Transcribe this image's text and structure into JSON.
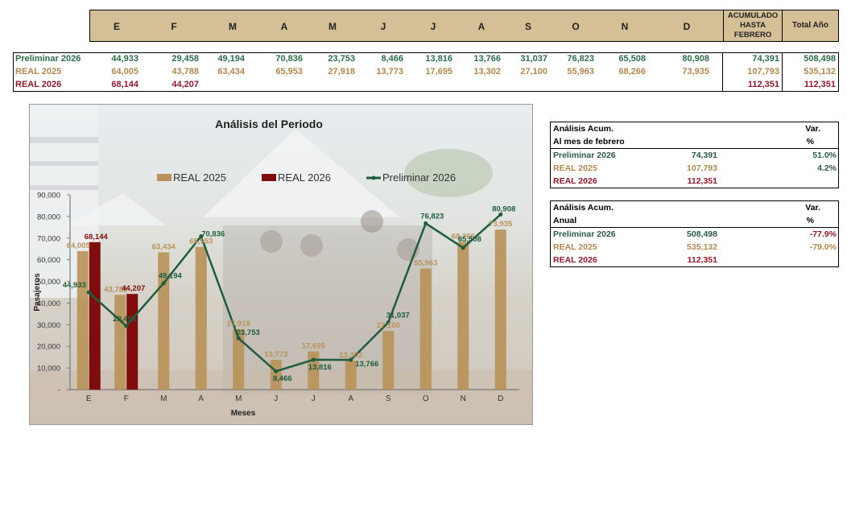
{
  "top_table": {
    "months": [
      "E",
      "F",
      "M",
      "A",
      "M",
      "J",
      "J",
      "A",
      "S",
      "O",
      "N",
      "D"
    ],
    "acumulado_header": [
      "ACUMULADO",
      "HASTA",
      "FEBRERO"
    ],
    "total_header": "Total Año",
    "rows": [
      {
        "label": "Preliminar 2026",
        "values": [
          "44,933",
          "29,458",
          "49,194",
          "70,836",
          "23,753",
          "8,466",
          "13,816",
          "13,766",
          "31,037",
          "76,823",
          "65,508",
          "80,908"
        ],
        "acumulado": "74,391",
        "total": "508,498"
      },
      {
        "label": "REAL 2025",
        "values": [
          "64,005",
          "43,788",
          "63,434",
          "65,953",
          "27,918",
          "13,773",
          "17,695",
          "13,302",
          "27,100",
          "55,963",
          "68,266",
          "73,935"
        ],
        "acumulado": "107,793",
        "total": "535,132"
      },
      {
        "label": "REAL 2026",
        "values": [
          "68,144",
          "44,207",
          "",
          "",
          "",
          "",
          "",
          "",
          "",
          "",
          "",
          ""
        ],
        "acumulado": "112,351",
        "total": "112,351"
      }
    ]
  },
  "chart_data": {
    "type": "bar",
    "title": "Análisis del Periodo",
    "xlabel": "Meses",
    "ylabel": "Pasajeros",
    "categories": [
      "E",
      "F",
      "M",
      "A",
      "M",
      "J",
      "J",
      "A",
      "S",
      "O",
      "N",
      "D"
    ],
    "ylim": [
      0,
      90000
    ],
    "yticks": [
      0,
      10000,
      20000,
      30000,
      40000,
      50000,
      60000,
      70000,
      80000,
      90000
    ],
    "ytick_labels": [
      "-",
      "10,000",
      "20,000",
      "30,000",
      "40,000",
      "50,000",
      "60,000",
      "70,000",
      "80,000",
      "90,000"
    ],
    "legend_position": "top",
    "series": [
      {
        "name": "REAL 2025",
        "kind": "bar",
        "color": "#b8925a",
        "values": [
          64005,
          43788,
          63434,
          65953,
          27918,
          13773,
          17695,
          13302,
          27100,
          55963,
          68266,
          73935
        ],
        "labels": [
          "64,005",
          "43,788",
          "63,434",
          "65,953",
          "27,918",
          "13,773",
          "17,695",
          "13,302",
          "27,100",
          "55,963",
          "68,266",
          "73,935"
        ]
      },
      {
        "name": "REAL 2026",
        "kind": "bar",
        "color": "#7f0d0d",
        "values": [
          68144,
          44207,
          null,
          null,
          null,
          null,
          null,
          null,
          null,
          null,
          null,
          null
        ],
        "labels": [
          "68,144",
          "44,207",
          "",
          "",
          "",
          "",
          "",
          "",
          "",
          "",
          "",
          ""
        ]
      },
      {
        "name": "Preliminar 2026",
        "kind": "line",
        "color": "#1f5c3e",
        "values": [
          44933,
          29458,
          49194,
          70836,
          23753,
          8466,
          13816,
          13766,
          31037,
          76823,
          65508,
          80908
        ],
        "labels": [
          "44,933",
          "29,458",
          "49,194",
          "70,836",
          "23,753",
          "8,466",
          "13,816",
          "13,766",
          "31,037",
          "76,823",
          "65,508",
          "80,908"
        ]
      }
    ]
  },
  "summary_feb": {
    "header1": [
      "Análisis  Acum.",
      "Var."
    ],
    "header2": [
      "Al mes de febrero",
      "%"
    ],
    "rows": [
      {
        "label": "Preliminar 2026",
        "value": "74,391",
        "var": "51.0%"
      },
      {
        "label": "REAL 2025",
        "value": "107,793",
        "var": "4.2%"
      },
      {
        "label": "REAL 2026",
        "value": "112,351",
        "var": ""
      }
    ]
  },
  "summary_year": {
    "header1": [
      "Análisis  Acum.",
      "Var."
    ],
    "header2": [
      "Anual",
      "%"
    ],
    "rows": [
      {
        "label": "Preliminar 2026",
        "value": "508,498",
        "var": "-77.9%"
      },
      {
        "label": "REAL 2025",
        "value": "535,132",
        "var": "-79.0%"
      },
      {
        "label": "REAL 2026",
        "value": "112,351",
        "var": ""
      }
    ]
  }
}
